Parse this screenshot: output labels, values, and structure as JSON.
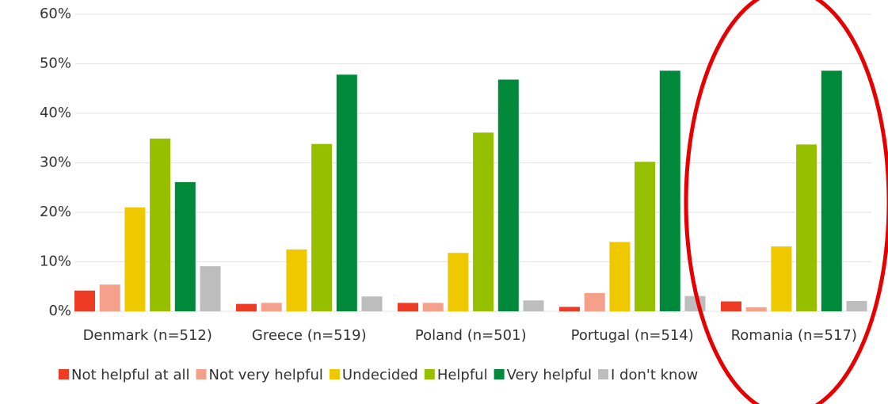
{
  "chart_data": {
    "type": "bar",
    "categories": [
      "Denmark (n=512)",
      "Greece (n=519)",
      "Poland (n=501)",
      "Portugal (n=514)",
      "Romania (n=517)"
    ],
    "series": [
      {
        "name": "Not helpful at all",
        "color": "#ef3b24",
        "values": [
          4.2,
          1.5,
          1.7,
          0.9,
          2.0
        ]
      },
      {
        "name": "Not very helpful",
        "color": "#f5a08b",
        "values": [
          5.4,
          1.7,
          1.7,
          3.7,
          0.8
        ]
      },
      {
        "name": "Undecided",
        "color": "#f0c800",
        "values": [
          21.0,
          12.5,
          11.8,
          14.0,
          13.1
        ]
      },
      {
        "name": "Helpful",
        "color": "#96bf00",
        "values": [
          34.9,
          33.8,
          36.1,
          30.2,
          33.7
        ]
      },
      {
        "name": "Very helpful",
        "color": "#00893a",
        "values": [
          26.1,
          47.8,
          46.8,
          48.6,
          48.6
        ]
      },
      {
        "name": "I don't know",
        "color": "#bdbdbd",
        "values": [
          9.1,
          3.0,
          2.2,
          3.1,
          2.1
        ]
      }
    ],
    "ylim": [
      0,
      60
    ],
    "yticks": [
      {
        "value": 0,
        "label": "0%"
      },
      {
        "value": 10,
        "label": "10%"
      },
      {
        "value": 20,
        "label": "20%"
      },
      {
        "value": 30,
        "label": "30%"
      },
      {
        "value": 40,
        "label": "40%"
      },
      {
        "value": 50,
        "label": "50%"
      },
      {
        "value": 60,
        "label": "60%"
      }
    ],
    "grid": true
  }
}
